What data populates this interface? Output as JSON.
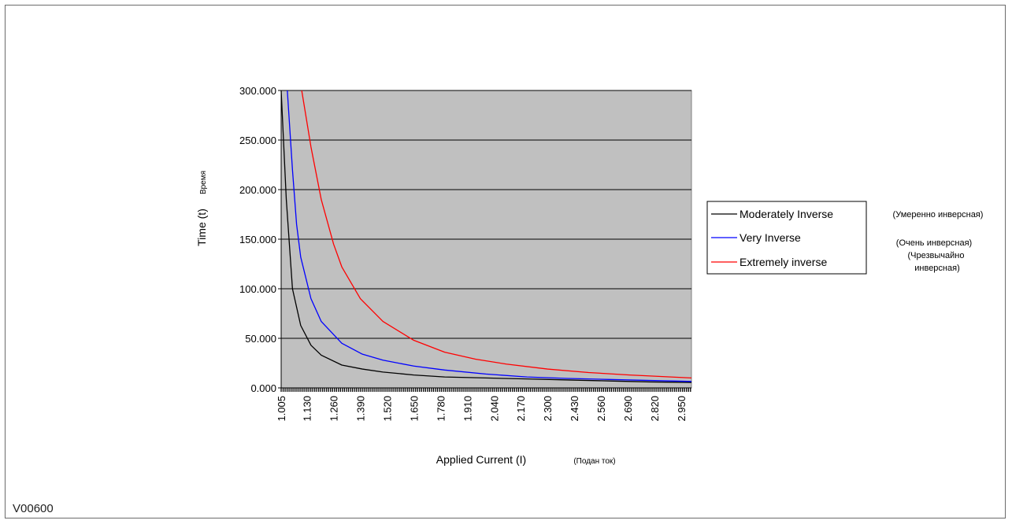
{
  "figure_id": "V00600",
  "chart_data": {
    "type": "line",
    "title": "",
    "xlabel": "Applied Current (I)",
    "xlabel_note": "(Подан ток)",
    "ylabel": "Time (t)",
    "ylabel_note": "Время",
    "ylim": [
      0,
      300
    ],
    "y_ticks": [
      "300.000",
      "250.000",
      "200.000",
      "150.000",
      "100.000",
      "50.000",
      "0.000"
    ],
    "y_tick_values": [
      300,
      250,
      200,
      150,
      100,
      50,
      0
    ],
    "xlim": [
      1.005,
      3.0
    ],
    "x_ticks": [
      "1.005",
      "1.130",
      "1.260",
      "1.390",
      "1.520",
      "1.650",
      "1.780",
      "1.910",
      "2.040",
      "2.170",
      "2.300",
      "2.430",
      "2.560",
      "2.690",
      "2.820",
      "2.950"
    ],
    "x_tick_values": [
      1.005,
      1.13,
      1.26,
      1.39,
      1.52,
      1.65,
      1.78,
      1.91,
      2.04,
      2.17,
      2.3,
      2.43,
      2.56,
      2.69,
      2.82,
      2.95
    ],
    "grid": true,
    "plot_background": "#c0c0c0",
    "legend_position": "right",
    "series": [
      {
        "name": "Moderately Inverse",
        "name_note": "(Умеренно инверсная)",
        "color": "#000000",
        "x": [
          1.005,
          1.03,
          1.06,
          1.1,
          1.15,
          1.2,
          1.3,
          1.4,
          1.5,
          1.65,
          1.8,
          2.0,
          2.2,
          2.4,
          2.6,
          2.8,
          3.0
        ],
        "y": [
          300,
          190,
          100,
          63,
          43,
          33,
          23,
          19,
          16,
          13,
          11,
          10,
          9,
          8,
          7,
          6,
          5.5
        ]
      },
      {
        "name": "Very Inverse",
        "name_note": "(Очень инверсная)",
        "color": "#0000ff",
        "x": [
          1.035,
          1.06,
          1.08,
          1.1,
          1.15,
          1.2,
          1.3,
          1.4,
          1.5,
          1.65,
          1.8,
          2.0,
          2.2,
          2.4,
          2.6,
          2.8,
          3.0
        ],
        "y": [
          300,
          220,
          165,
          132,
          90,
          67,
          45,
          34,
          28,
          22,
          18,
          14,
          11,
          9.5,
          8.5,
          7.5,
          6.5
        ]
      },
      {
        "name": "Extremely inverse",
        "name_note": "(Чрезвычайно инверсная)",
        "color": "#ff0000",
        "x": [
          1.105,
          1.15,
          1.2,
          1.26,
          1.3,
          1.39,
          1.5,
          1.65,
          1.8,
          1.95,
          2.1,
          2.3,
          2.5,
          2.7,
          2.9,
          3.0
        ],
        "y": [
          300,
          243,
          190,
          145,
          122,
          90,
          67,
          48,
          36,
          29,
          24,
          19,
          15.5,
          13,
          11,
          10
        ]
      }
    ]
  }
}
